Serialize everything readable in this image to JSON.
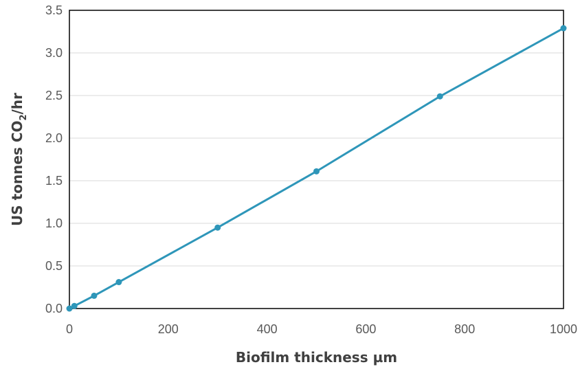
{
  "chart_data": {
    "type": "line",
    "title": "",
    "xlabel": "Biofilm thickness µm",
    "ylabel": {
      "prefix": "US tonnes CO",
      "subscript": "2",
      "suffix": "/hr"
    },
    "xlim": [
      0,
      1000
    ],
    "ylim": [
      0,
      3.5
    ],
    "x_ticks": [
      0,
      200,
      400,
      600,
      800,
      1000
    ],
    "x_tick_labels": [
      "0",
      "200",
      "400",
      "600",
      "800",
      "1000"
    ],
    "y_ticks": [
      0,
      0.5,
      1.0,
      1.5,
      2.0,
      2.5,
      3.0,
      3.5
    ],
    "y_tick_labels": [
      "0.0",
      "0.5",
      "1.0",
      "1.5",
      "2.0",
      "2.5",
      "3.0",
      "3.5"
    ],
    "grid": "horizontal",
    "legend": "none",
    "series": [
      {
        "color": "#2e96b9",
        "markers": true,
        "x": [
          0,
          10,
          50,
          100,
          300,
          500,
          750,
          1000
        ],
        "y": [
          0.0,
          0.03,
          0.15,
          0.31,
          0.95,
          1.61,
          2.49,
          3.29
        ]
      }
    ]
  }
}
